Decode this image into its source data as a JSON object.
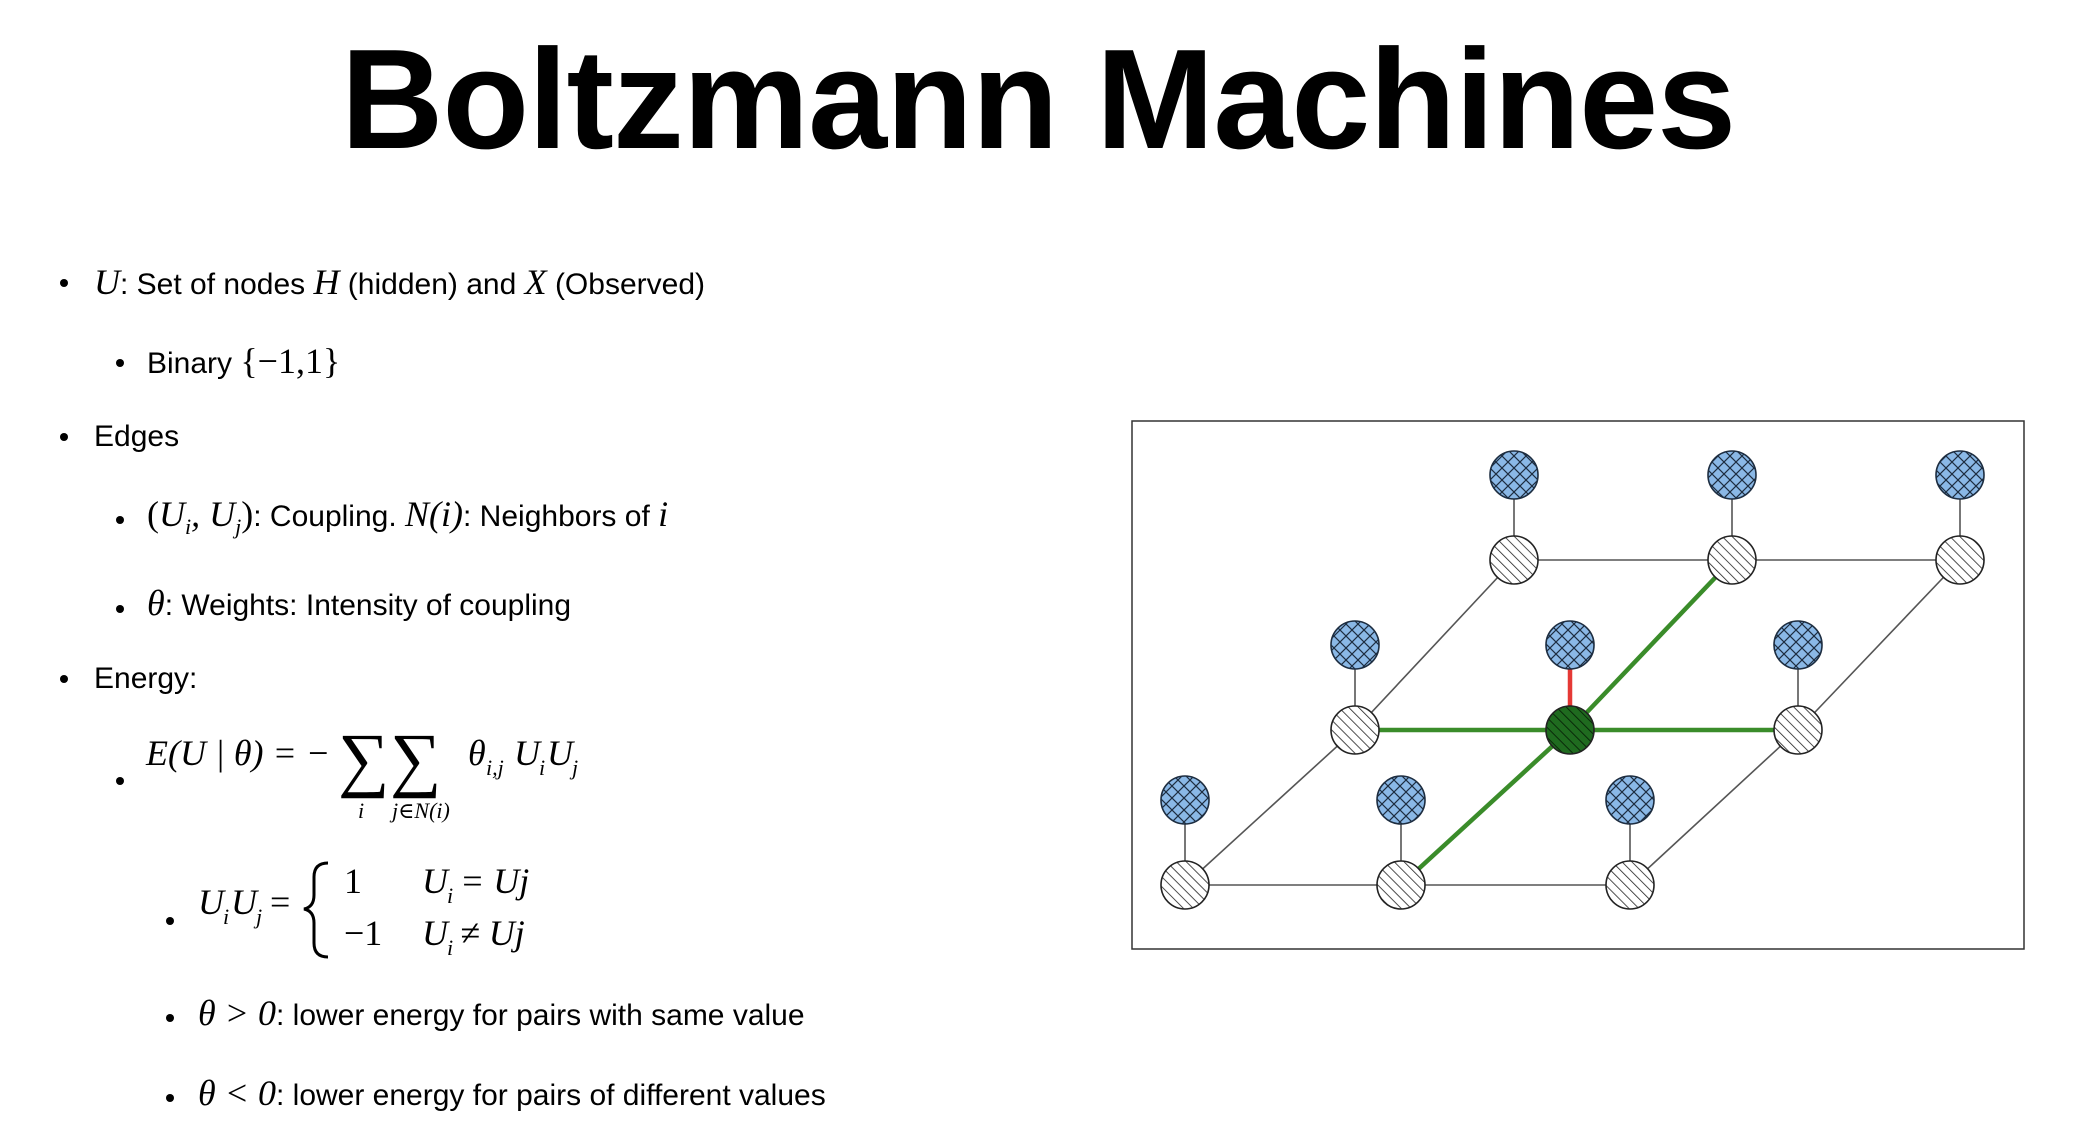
{
  "title": "Boltzmann Machines",
  "bullets": {
    "u_text": ": Set of nodes ",
    "u_hidden": " (hidden) and ",
    "u_observed": " (Observed)",
    "binary_label": "Binary ",
    "binary_set": "{−1,1}",
    "edges": "Edges",
    "coupling_text": ": Coupling. ",
    "neighbors_text": ": Neighbors of ",
    "weights_text": ": Weights: Intensity of coupling",
    "energy": "Energy:",
    "theta_pos_text": ": lower energy for pairs with same  value",
    "theta_neg_text": ": lower energy for pairs of different values"
  },
  "math": {
    "U": "U",
    "H": "H",
    "X": "X",
    "Ni": "N(i)",
    "i": "i",
    "theta": "θ",
    "theta_pos": "θ > 0",
    "theta_neg": "θ < 0",
    "energy_lhs": "E(U | θ) = −",
    "energy_sum1_sub": "i",
    "energy_sum2_sub": "j∈N(i)",
    "energy_term": "θ",
    "energy_term_sub": "i,j",
    "uiuj_case1_val": "1",
    "uiuj_case1_cond": "= Uj",
    "uiuj_case2_val": "−1",
    "uiuj_case2_cond": "≠ Uj"
  },
  "diagram": {
    "colors": {
      "hidden_fill": "#8ab8e6",
      "observed_fill": "#ffffff",
      "center_fill": "#1f6b1f",
      "highlight_edge": "#3a8c2a",
      "vertical_highlight": "#e53935",
      "edge": "#555555",
      "border": "#333333"
    }
  }
}
